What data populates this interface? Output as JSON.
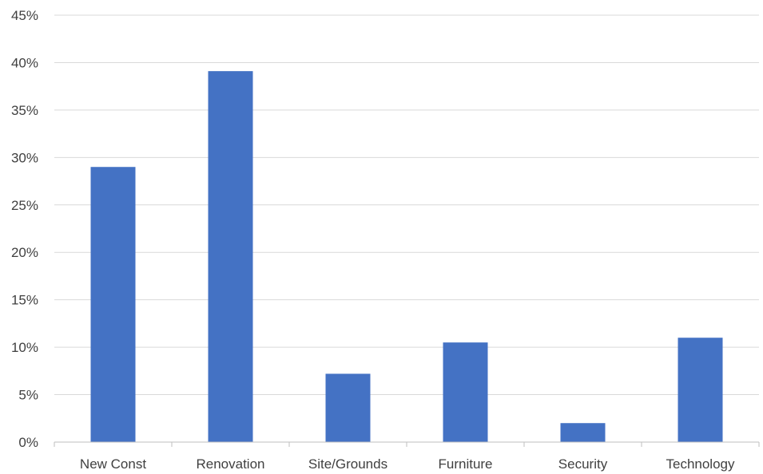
{
  "chart_data": {
    "type": "bar",
    "title": "",
    "xlabel": "",
    "ylabel": "",
    "categories": [
      "New Const",
      "Renovation",
      "Site/Grounds",
      "Furniture",
      "Security",
      "Technology"
    ],
    "values": [
      29.0,
      39.1,
      7.2,
      10.5,
      2.0,
      11.0
    ],
    "value_unit": "%",
    "ylim": [
      0,
      45
    ],
    "y_ticks": [
      "0%",
      "5%",
      "10%",
      "15%",
      "20%",
      "25%",
      "30%",
      "35%",
      "40%",
      "45%"
    ],
    "grid": true,
    "legend": "none",
    "bar_color": "#4472c4"
  }
}
